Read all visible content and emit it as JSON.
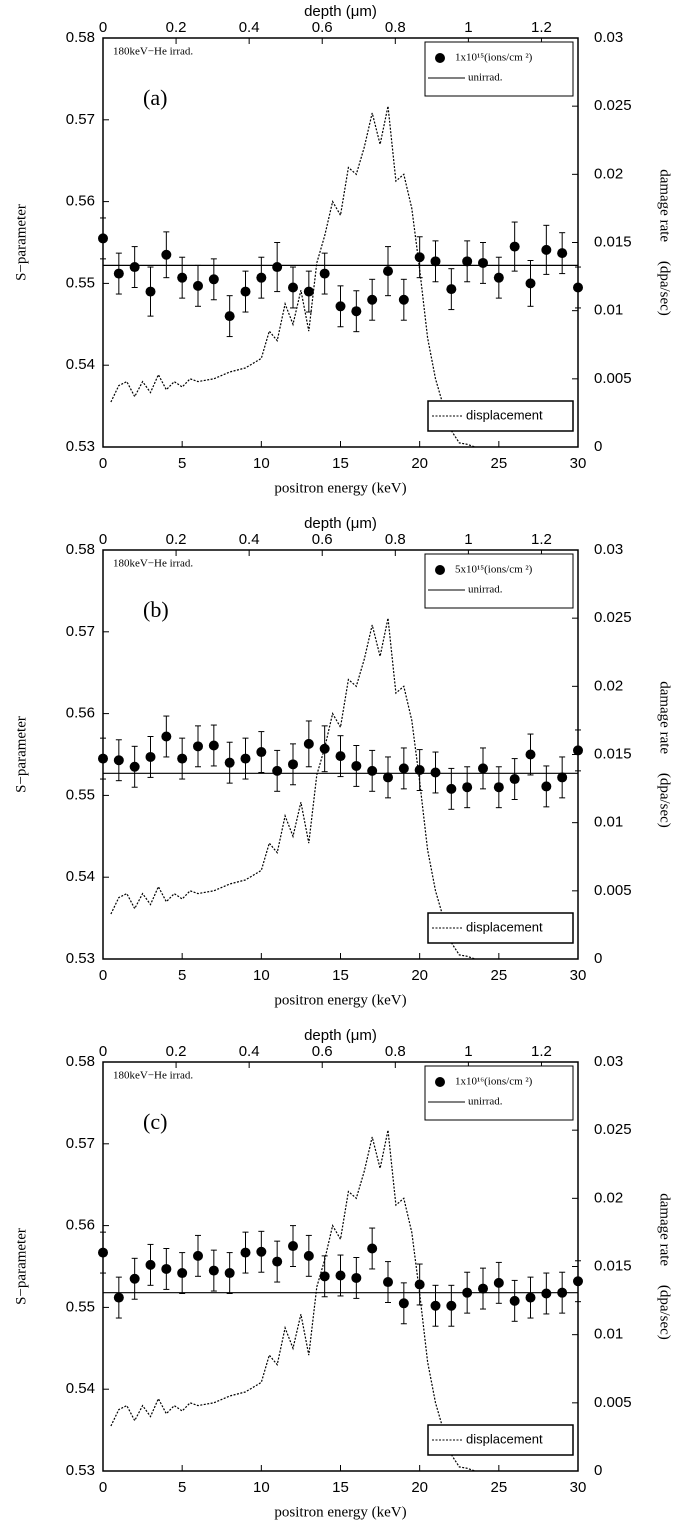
{
  "chart_data": [
    {
      "type": "scatter",
      "panel_label": "(a)",
      "annotation": "180keV−He irrad.",
      "xlabel": "positron energy (keV)",
      "x2label": "depth (μm)",
      "ylabel": "S−parameter",
      "y2label": "damage rate 　(dpa/sec)",
      "xlim": [
        0,
        30
      ],
      "xticks": [
        0,
        5,
        10,
        15,
        20,
        25,
        30
      ],
      "x2lim": [
        0,
        1.3
      ],
      "x2ticks": [
        0,
        0.2,
        0.4,
        0.6,
        0.8,
        1,
        1.2
      ],
      "ylim": [
        0.53,
        0.58
      ],
      "yticks": [
        0.53,
        0.54,
        0.55,
        0.56,
        0.57,
        0.58
      ],
      "y2lim": [
        0,
        0.03
      ],
      "y2ticks": [
        0,
        0.005,
        0.01,
        0.015,
        0.02,
        0.025,
        0.03
      ],
      "series": [
        {
          "name": "1x10¹⁵(ions/cm ²)",
          "kind": "points",
          "color": "#000000",
          "x": [
            0,
            1,
            2,
            3,
            4,
            5,
            6,
            7,
            8,
            9,
            10,
            11,
            12,
            13,
            14,
            15,
            16,
            17,
            18,
            19,
            20,
            21,
            22,
            23,
            24,
            25,
            26,
            27,
            28,
            29,
            30
          ],
          "values": [
            0.5555,
            0.5512,
            0.552,
            0.549,
            0.5535,
            0.5507,
            0.5497,
            0.5505,
            0.546,
            0.549,
            0.5507,
            0.552,
            0.5495,
            0.549,
            0.5512,
            0.5472,
            0.5466,
            0.548,
            0.5515,
            0.548,
            0.5532,
            0.5527,
            0.5493,
            0.5527,
            0.5525,
            0.5507,
            0.5545,
            0.55,
            0.5541,
            0.5537,
            0.5495
          ],
          "errors": [
            0.0025,
            0.0025,
            0.0025,
            0.003,
            0.0028,
            0.0025,
            0.0025,
            0.0025,
            0.0025,
            0.0025,
            0.0025,
            0.003,
            0.0025,
            0.0025,
            0.0025,
            0.0025,
            0.0025,
            0.0025,
            0.003,
            0.0025,
            0.0025,
            0.0025,
            0.0025,
            0.0025,
            0.0025,
            0.0025,
            0.003,
            0.0028,
            0.003,
            0.0025,
            0.0025
          ]
        },
        {
          "name": "unirrad.",
          "kind": "hline",
          "color": "#000000",
          "values": [
            0.5522
          ]
        },
        {
          "name": "displacement",
          "kind": "dotted",
          "axis": "y2",
          "color": "#000000",
          "x": [
            0.5,
            1,
            1.5,
            2,
            2.5,
            3,
            3.5,
            4,
            4.5,
            5,
            5.5,
            6,
            7,
            8,
            9,
            10,
            10.5,
            11,
            11.5,
            12,
            12.5,
            13,
            13.5,
            14,
            14.5,
            15,
            15.5,
            16,
            16.5,
            17,
            17.5,
            18,
            18.5,
            19,
            19.5,
            20,
            20.5,
            21,
            21.5,
            22,
            22.5,
            23,
            23.5
          ],
          "values": [
            0.0033,
            0.0045,
            0.0048,
            0.0037,
            0.0048,
            0.004,
            0.0053,
            0.0042,
            0.0048,
            0.0044,
            0.005,
            0.0048,
            0.005,
            0.0055,
            0.0058,
            0.0065,
            0.0085,
            0.0078,
            0.0105,
            0.009,
            0.0115,
            0.0085,
            0.0135,
            0.0155,
            0.018,
            0.017,
            0.0205,
            0.02,
            0.022,
            0.0245,
            0.0222,
            0.025,
            0.0195,
            0.02,
            0.0175,
            0.013,
            0.008,
            0.005,
            0.003,
            0.0012,
            0.0003,
            0.0002,
            0
          ]
        }
      ]
    },
    {
      "type": "scatter",
      "panel_label": "(b)",
      "annotation": "180keV−He irrad.",
      "xlabel": "positron energy (keV)",
      "x2label": "depth (μm)",
      "ylabel": "S−parameter",
      "y2label": "damage rate 　(dpa/sec)",
      "xlim": [
        0,
        30
      ],
      "xticks": [
        0,
        5,
        10,
        15,
        20,
        25,
        30
      ],
      "x2lim": [
        0,
        1.3
      ],
      "x2ticks": [
        0,
        0.2,
        0.4,
        0.6,
        0.8,
        1,
        1.2
      ],
      "ylim": [
        0.53,
        0.58
      ],
      "yticks": [
        0.53,
        0.54,
        0.55,
        0.56,
        0.57,
        0.58
      ],
      "y2lim": [
        0,
        0.03
      ],
      "y2ticks": [
        0,
        0.005,
        0.01,
        0.015,
        0.02,
        0.025,
        0.03
      ],
      "series": [
        {
          "name": "5x10¹⁵(ions/cm ²)",
          "kind": "points",
          "color": "#000000",
          "x": [
            0,
            1,
            2,
            3,
            4,
            5,
            6,
            7,
            8,
            9,
            10,
            11,
            12,
            13,
            14,
            15,
            16,
            17,
            18,
            19,
            20,
            21,
            22,
            23,
            24,
            25,
            26,
            27,
            28,
            29,
            30
          ],
          "values": [
            0.5545,
            0.5543,
            0.5535,
            0.5547,
            0.5572,
            0.5545,
            0.556,
            0.5561,
            0.554,
            0.5545,
            0.5553,
            0.553,
            0.5538,
            0.5563,
            0.5557,
            0.5548,
            0.5536,
            0.553,
            0.5522,
            0.5533,
            0.5531,
            0.5528,
            0.5508,
            0.551,
            0.5533,
            0.551,
            0.552,
            0.555,
            0.5511,
            0.5522,
            0.5555
          ],
          "errors": [
            0.0025,
            0.0025,
            0.0025,
            0.0025,
            0.0025,
            0.0025,
            0.0025,
            0.0025,
            0.0025,
            0.0025,
            0.0025,
            0.0025,
            0.0025,
            0.0028,
            0.0028,
            0.0025,
            0.0025,
            0.0025,
            0.0025,
            0.0025,
            0.0025,
            0.0025,
            0.0025,
            0.0025,
            0.0025,
            0.0025,
            0.0025,
            0.0025,
            0.0025,
            0.0025,
            0.0025
          ]
        },
        {
          "name": "unirrad.",
          "kind": "hline",
          "color": "#000000",
          "values": [
            0.5527
          ]
        },
        {
          "name": "displacement",
          "kind": "dotted",
          "axis": "y2",
          "color": "#000000",
          "x": [
            0.5,
            1,
            1.5,
            2,
            2.5,
            3,
            3.5,
            4,
            4.5,
            5,
            5.5,
            6,
            7,
            8,
            9,
            10,
            10.5,
            11,
            11.5,
            12,
            12.5,
            13,
            13.5,
            14,
            14.5,
            15,
            15.5,
            16,
            16.5,
            17,
            17.5,
            18,
            18.5,
            19,
            19.5,
            20,
            20.5,
            21,
            21.5,
            22,
            22.5,
            23,
            23.5
          ],
          "values": [
            0.0033,
            0.0045,
            0.0048,
            0.0037,
            0.0048,
            0.004,
            0.0053,
            0.0042,
            0.0048,
            0.0044,
            0.005,
            0.0048,
            0.005,
            0.0055,
            0.0058,
            0.0065,
            0.0085,
            0.0078,
            0.0105,
            0.009,
            0.0115,
            0.0085,
            0.0135,
            0.0155,
            0.018,
            0.017,
            0.0205,
            0.02,
            0.022,
            0.0245,
            0.0222,
            0.025,
            0.0195,
            0.02,
            0.0175,
            0.013,
            0.008,
            0.005,
            0.003,
            0.0012,
            0.0003,
            0.0002,
            0
          ]
        }
      ]
    },
    {
      "type": "scatter",
      "panel_label": "(c)",
      "annotation": "180keV−He irrad.",
      "xlabel": "positron energy (keV)",
      "x2label": "depth (μm)",
      "ylabel": "S−parameter",
      "y2label": "damage rate 　(dpa/sec)",
      "xlim": [
        0,
        30
      ],
      "xticks": [
        0,
        5,
        10,
        15,
        20,
        25,
        30
      ],
      "x2lim": [
        0,
        1.3
      ],
      "x2ticks": [
        0,
        0.2,
        0.4,
        0.6,
        0.8,
        1,
        1.2
      ],
      "ylim": [
        0.53,
        0.58
      ],
      "yticks": [
        0.53,
        0.54,
        0.55,
        0.56,
        0.57,
        0.58
      ],
      "y2lim": [
        0,
        0.03
      ],
      "y2ticks": [
        0,
        0.005,
        0.01,
        0.015,
        0.02,
        0.025,
        0.03
      ],
      "series": [
        {
          "name": "1x10¹⁶(ions/cm ²)",
          "kind": "points",
          "color": "#000000",
          "x": [
            0,
            1,
            2,
            3,
            4,
            5,
            6,
            7,
            8,
            9,
            10,
            11,
            12,
            13,
            14,
            15,
            16,
            17,
            18,
            19,
            20,
            21,
            22,
            23,
            24,
            25,
            26,
            27,
            28,
            29,
            30
          ],
          "values": [
            0.5567,
            0.5512,
            0.5535,
            0.5552,
            0.5547,
            0.5542,
            0.5563,
            0.5545,
            0.5542,
            0.5567,
            0.5568,
            0.5556,
            0.5575,
            0.5563,
            0.5538,
            0.5539,
            0.5536,
            0.5572,
            0.5531,
            0.5505,
            0.5528,
            0.5502,
            0.5502,
            0.5518,
            0.5523,
            0.553,
            0.5508,
            0.5512,
            0.5517,
            0.5518,
            0.5532
          ],
          "errors": [
            0.0025,
            0.0025,
            0.0025,
            0.0025,
            0.0025,
            0.0025,
            0.0025,
            0.0025,
            0.0025,
            0.0025,
            0.0025,
            0.0025,
            0.0025,
            0.0025,
            0.0025,
            0.0025,
            0.0025,
            0.0025,
            0.0025,
            0.0025,
            0.0025,
            0.0025,
            0.0025,
            0.0025,
            0.0025,
            0.0025,
            0.0025,
            0.0025,
            0.0025,
            0.0025,
            0.0025
          ]
        },
        {
          "name": "unirrad.",
          "kind": "hline",
          "color": "#000000",
          "values": [
            0.5518
          ]
        },
        {
          "name": "displacement",
          "kind": "dotted",
          "axis": "y2",
          "color": "#000000",
          "x": [
            0.5,
            1,
            1.5,
            2,
            2.5,
            3,
            3.5,
            4,
            4.5,
            5,
            5.5,
            6,
            7,
            8,
            9,
            10,
            10.5,
            11,
            11.5,
            12,
            12.5,
            13,
            13.5,
            14,
            14.5,
            15,
            15.5,
            16,
            16.5,
            17,
            17.5,
            18,
            18.5,
            19,
            19.5,
            20,
            20.5,
            21,
            21.5,
            22,
            22.5,
            23,
            23.5
          ],
          "values": [
            0.0033,
            0.0045,
            0.0048,
            0.0037,
            0.0048,
            0.004,
            0.0053,
            0.0042,
            0.0048,
            0.0044,
            0.005,
            0.0048,
            0.005,
            0.0055,
            0.0058,
            0.0065,
            0.0085,
            0.0078,
            0.0105,
            0.009,
            0.0115,
            0.0085,
            0.0135,
            0.0155,
            0.018,
            0.017,
            0.0205,
            0.02,
            0.022,
            0.0245,
            0.0222,
            0.025,
            0.0195,
            0.02,
            0.0175,
            0.013,
            0.008,
            0.005,
            0.003,
            0.0012,
            0.0003,
            0.0002,
            0
          ]
        }
      ]
    }
  ]
}
